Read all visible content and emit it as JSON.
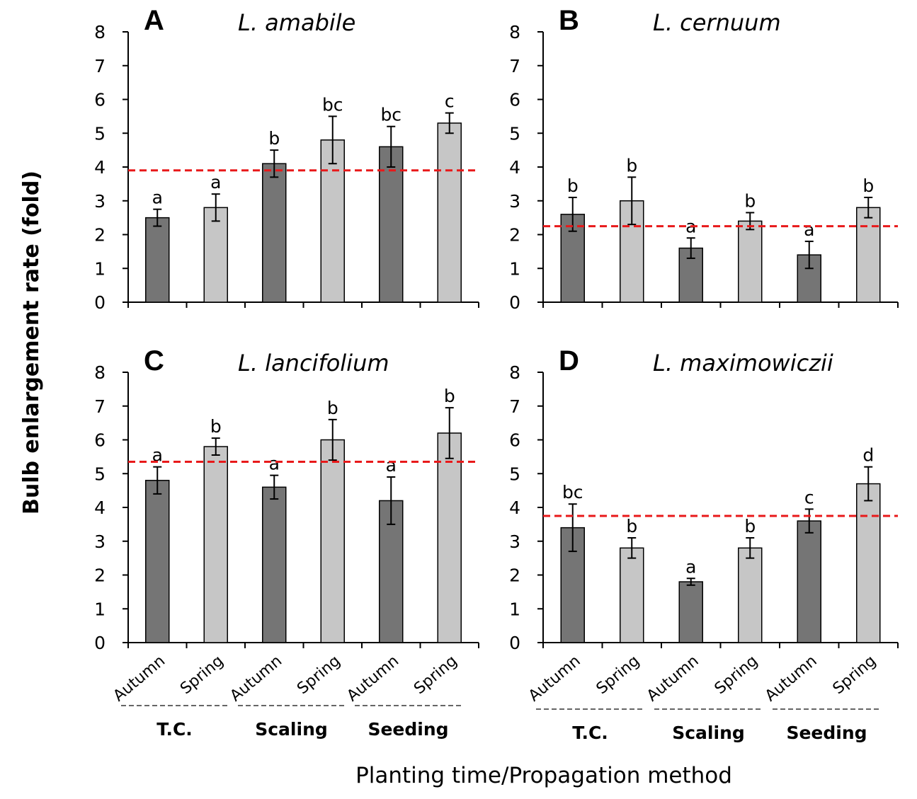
{
  "ylabel": "Bulb enlargement rate (fold)",
  "xlabel": "Planting time/Propagation method",
  "colors": {
    "autumn": "#757575",
    "spring": "#c6c6c6",
    "reference_line": "#e8191a"
  },
  "chart_data": [
    {
      "type": "bar",
      "panel": "A",
      "title": "L. amabile",
      "categories": [
        "Autumn",
        "Spring",
        "Autumn",
        "Spring",
        "Autumn",
        "Spring"
      ],
      "groups": [
        "T.C.",
        "Scaling",
        "Seeding"
      ],
      "values": [
        2.5,
        2.8,
        4.1,
        4.8,
        4.6,
        5.3
      ],
      "errors": [
        0.25,
        0.4,
        0.4,
        0.7,
        0.6,
        0.3
      ],
      "significance": [
        "a",
        "a",
        "b",
        "bc",
        "bc",
        "c"
      ],
      "reference_line": 3.9,
      "ylim": [
        0,
        8
      ],
      "yticks": [
        0,
        1,
        2,
        3,
        4,
        5,
        6,
        7,
        8
      ]
    },
    {
      "type": "bar",
      "panel": "B",
      "title": "L. cernuum",
      "categories": [
        "Autumn",
        "Spring",
        "Autumn",
        "Spring",
        "Autumn",
        "Spring"
      ],
      "groups": [
        "T.C.",
        "Scaling",
        "Seeding"
      ],
      "values": [
        2.6,
        3.0,
        1.6,
        2.4,
        1.4,
        2.8
      ],
      "errors": [
        0.5,
        0.7,
        0.3,
        0.25,
        0.4,
        0.3
      ],
      "significance": [
        "b",
        "b",
        "a",
        "b",
        "a",
        "b"
      ],
      "reference_line": 2.25,
      "ylim": [
        0,
        8
      ],
      "yticks": [
        0,
        1,
        2,
        3,
        4,
        5,
        6,
        7,
        8
      ]
    },
    {
      "type": "bar",
      "panel": "C",
      "title": "L. lancifolium",
      "categories": [
        "Autumn",
        "Spring",
        "Autumn",
        "Spring",
        "Autumn",
        "Spring"
      ],
      "groups": [
        "T.C.",
        "Scaling",
        "Seeding"
      ],
      "values": [
        4.8,
        5.8,
        4.6,
        6.0,
        4.2,
        6.2
      ],
      "errors": [
        0.4,
        0.25,
        0.35,
        0.6,
        0.7,
        0.75
      ],
      "significance": [
        "a",
        "b",
        "a",
        "b",
        "a",
        "b"
      ],
      "reference_line": 5.35,
      "ylim": [
        0,
        8
      ],
      "yticks": [
        0,
        1,
        2,
        3,
        4,
        5,
        6,
        7,
        8
      ]
    },
    {
      "type": "bar",
      "panel": "D",
      "title": "L. maximowiczii",
      "categories": [
        "Autumn",
        "Spring",
        "Autumn",
        "Spring",
        "Autumn",
        "Spring"
      ],
      "groups": [
        "T.C.",
        "Scaling",
        "Seeding"
      ],
      "values": [
        3.4,
        2.8,
        1.8,
        2.8,
        3.6,
        4.7
      ],
      "errors": [
        0.7,
        0.3,
        0.1,
        0.3,
        0.35,
        0.5
      ],
      "significance": [
        "bc",
        "b",
        "a",
        "b",
        "c",
        "d"
      ],
      "reference_line": 3.75,
      "ylim": [
        0,
        8
      ],
      "yticks": [
        0,
        1,
        2,
        3,
        4,
        5,
        6,
        7,
        8
      ]
    }
  ]
}
